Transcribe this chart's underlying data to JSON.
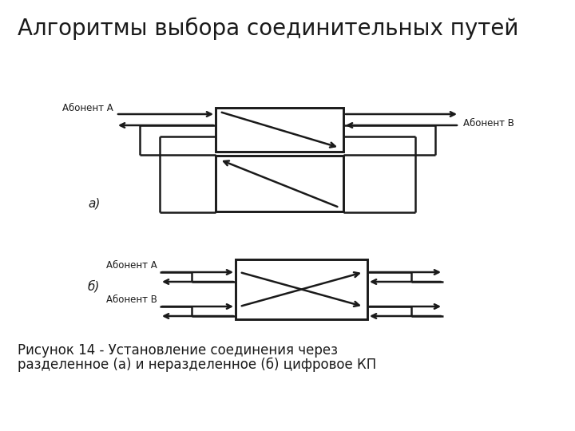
{
  "title": "Алгоритмы выбора соединительных путей",
  "title_fontsize": 20,
  "caption_line1": "Рисунок 14 - Установление соединения через",
  "caption_line2": "разделенное (а) и неразделенное (б) цифровое КП",
  "caption_fontsize": 12,
  "bg_color": "#ffffff",
  "line_color": "#1a1a1a",
  "label_a": "а)",
  "label_b": "б)",
  "abonent_A": "Абонент А",
  "abonent_B": "Абонент В",
  "abonent_A2": "Абонент А",
  "abonent_B2": "Абонент В"
}
